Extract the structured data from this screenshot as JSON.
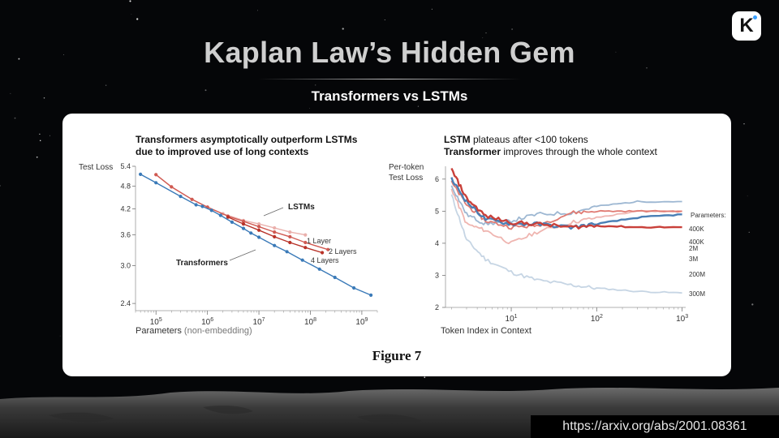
{
  "slide": {
    "title": "Kaplan Law’s Hidden Gem",
    "subtitle": "Transformers vs LSTMs",
    "logo_letter": "K",
    "url": "https://arxiv.org/abs/2001.08361",
    "figure_caption": "Figure 7"
  },
  "panels": {
    "left": {
      "title_line1": "Transformers asymptotically outperform LSTMs",
      "title_line2": "due to improved use of long contexts"
    },
    "right": {
      "title_line1_bold": "LSTM",
      "title_line1_rest": " plateaus after <100 tokens",
      "title_line2_bold": "Transformer",
      "title_line2_rest": " improves through the whole context"
    }
  },
  "colors": {
    "transformer": "#3a7ab8",
    "lstm_1_layer": "#eab0ac",
    "lstm_2_layers": "#d05a52",
    "lstm_4_layers": "#b83228",
    "lstm_curves": [
      "#c9403a",
      "#e07a72",
      "#efb5b0"
    ],
    "transformer_curves": [
      "#4a7fb5",
      "#9db7d2",
      "#c6d5e4"
    ]
  },
  "chart_data": [
    {
      "type": "line",
      "xlabel_main": "Parameters",
      "xlabel_note": " (non-embedding)",
      "ylabel": "Test Loss",
      "x_scale": "log",
      "y_scale": "log",
      "xlim": [
        40000,
        2000000000
      ],
      "ylim": [
        2.3,
        5.4
      ],
      "xticks": [
        100000,
        1000000,
        10000000,
        100000000,
        1000000000
      ],
      "xtick_labels": [
        {
          "base": "10",
          "exp": "5"
        },
        {
          "base": "10",
          "exp": "6"
        },
        {
          "base": "10",
          "exp": "7"
        },
        {
          "base": "10",
          "exp": "8"
        },
        {
          "base": "10",
          "exp": "9"
        }
      ],
      "yticks": [
        2.4,
        3.0,
        3.6,
        4.2,
        4.8,
        5.4
      ],
      "ytick_labels": [
        "2.4",
        "3.0",
        "3.6",
        "4.2",
        "4.8",
        "5.4"
      ],
      "grid": false,
      "series": [
        {
          "name": "Transformers",
          "x": [
            50000,
            100000,
            300000,
            600000,
            800000,
            1200000,
            1800000,
            3000000,
            5000000,
            7000000,
            10000000,
            20000000,
            35000000,
            70000000,
            150000000,
            300000000,
            700000000,
            1500000000
          ],
          "y": [
            5.15,
            4.9,
            4.52,
            4.3,
            4.26,
            4.16,
            4.04,
            3.88,
            3.74,
            3.64,
            3.55,
            3.38,
            3.26,
            3.1,
            2.94,
            2.8,
            2.63,
            2.52
          ]
        },
        {
          "name": "1 Layer",
          "x": [
            100000,
            200000,
            500000,
            1000000,
            2000000,
            5000000,
            10000000,
            20000000,
            40000000,
            80000000
          ],
          "y": [
            5.14,
            4.78,
            4.44,
            4.24,
            4.08,
            3.92,
            3.84,
            3.75,
            3.66,
            3.6
          ]
        },
        {
          "name": "2 Layers",
          "x": [
            100000,
            200000,
            500000,
            1000000,
            2500000,
            5000000,
            10000000,
            20000000,
            40000000,
            80000000,
            220000000
          ],
          "y": [
            5.14,
            4.78,
            4.44,
            4.24,
            4.02,
            3.9,
            3.78,
            3.66,
            3.56,
            3.44,
            3.3
          ]
        },
        {
          "name": "4 Layers",
          "x": [
            2500000,
            5000000,
            10000000,
            20000000,
            40000000,
            80000000,
            170000000
          ],
          "y": [
            4.0,
            3.84,
            3.7,
            3.56,
            3.44,
            3.34,
            3.24
          ]
        }
      ],
      "annotations": [
        "LSTMs",
        "Transformers",
        "1 Layer",
        "2 Layers",
        "4 Layers"
      ]
    },
    {
      "type": "line",
      "xlabel": "Token Index in Context",
      "ylabel_line1": "Per-token",
      "ylabel_line2": "Test Loss",
      "x_scale": "log",
      "xlim": [
        1.7,
        1100
      ],
      "ylim": [
        2,
        6.4
      ],
      "xticks": [
        10,
        100,
        1000
      ],
      "xtick_labels": [
        {
          "base": "10",
          "exp": "1"
        },
        {
          "base": "10",
          "exp": "2"
        },
        {
          "base": "10",
          "exp": "3"
        }
      ],
      "yticks": [
        2,
        3,
        4,
        5,
        6
      ],
      "ytick_labels": [
        "2",
        "3",
        "4",
        "5",
        "6"
      ],
      "grid": false,
      "legend_title": "Parameters:",
      "legend_position": "right",
      "series": [
        {
          "name": "400K",
          "model": "LSTM",
          "x": [
            2,
            3,
            5,
            10,
            20,
            50,
            100,
            300,
            1000
          ],
          "y": [
            6.3,
            5.4,
            4.85,
            4.65,
            4.6,
            4.5,
            4.55,
            4.5,
            4.5
          ]
        },
        {
          "name": "400K",
          "model": "Transformer",
          "x": [
            2,
            3,
            5,
            10,
            20,
            50,
            100,
            300,
            1000
          ],
          "y": [
            6.0,
            5.3,
            4.75,
            4.6,
            4.6,
            4.5,
            4.6,
            4.8,
            4.9
          ]
        },
        {
          "name": "2M",
          "model": "LSTM",
          "x": [
            2,
            3,
            5,
            10,
            20,
            50,
            100,
            300,
            1000
          ],
          "y": [
            5.9,
            5.2,
            4.7,
            4.5,
            4.55,
            4.95,
            5.0,
            5.0,
            5.0
          ]
        },
        {
          "name": "3M",
          "model": "Transformer",
          "x": [
            2,
            3,
            5,
            10,
            20,
            50,
            100,
            300,
            1000
          ],
          "y": [
            5.8,
            4.9,
            4.6,
            4.7,
            4.9,
            4.95,
            5.15,
            5.3,
            5.3
          ]
        },
        {
          "name": "200M",
          "model": "LSTM",
          "x": [
            2,
            3,
            5,
            10,
            20,
            50,
            100,
            300,
            1000
          ],
          "y": [
            5.7,
            4.6,
            4.4,
            4.0,
            4.35,
            4.65,
            4.8,
            5.0,
            5.0
          ]
        },
        {
          "name": "300M",
          "model": "Transformer",
          "x": [
            2,
            3,
            5,
            10,
            20,
            50,
            100,
            300,
            1000
          ],
          "y": [
            5.5,
            4.1,
            3.5,
            3.1,
            2.85,
            2.7,
            2.6,
            2.5,
            2.45
          ]
        }
      ]
    }
  ]
}
